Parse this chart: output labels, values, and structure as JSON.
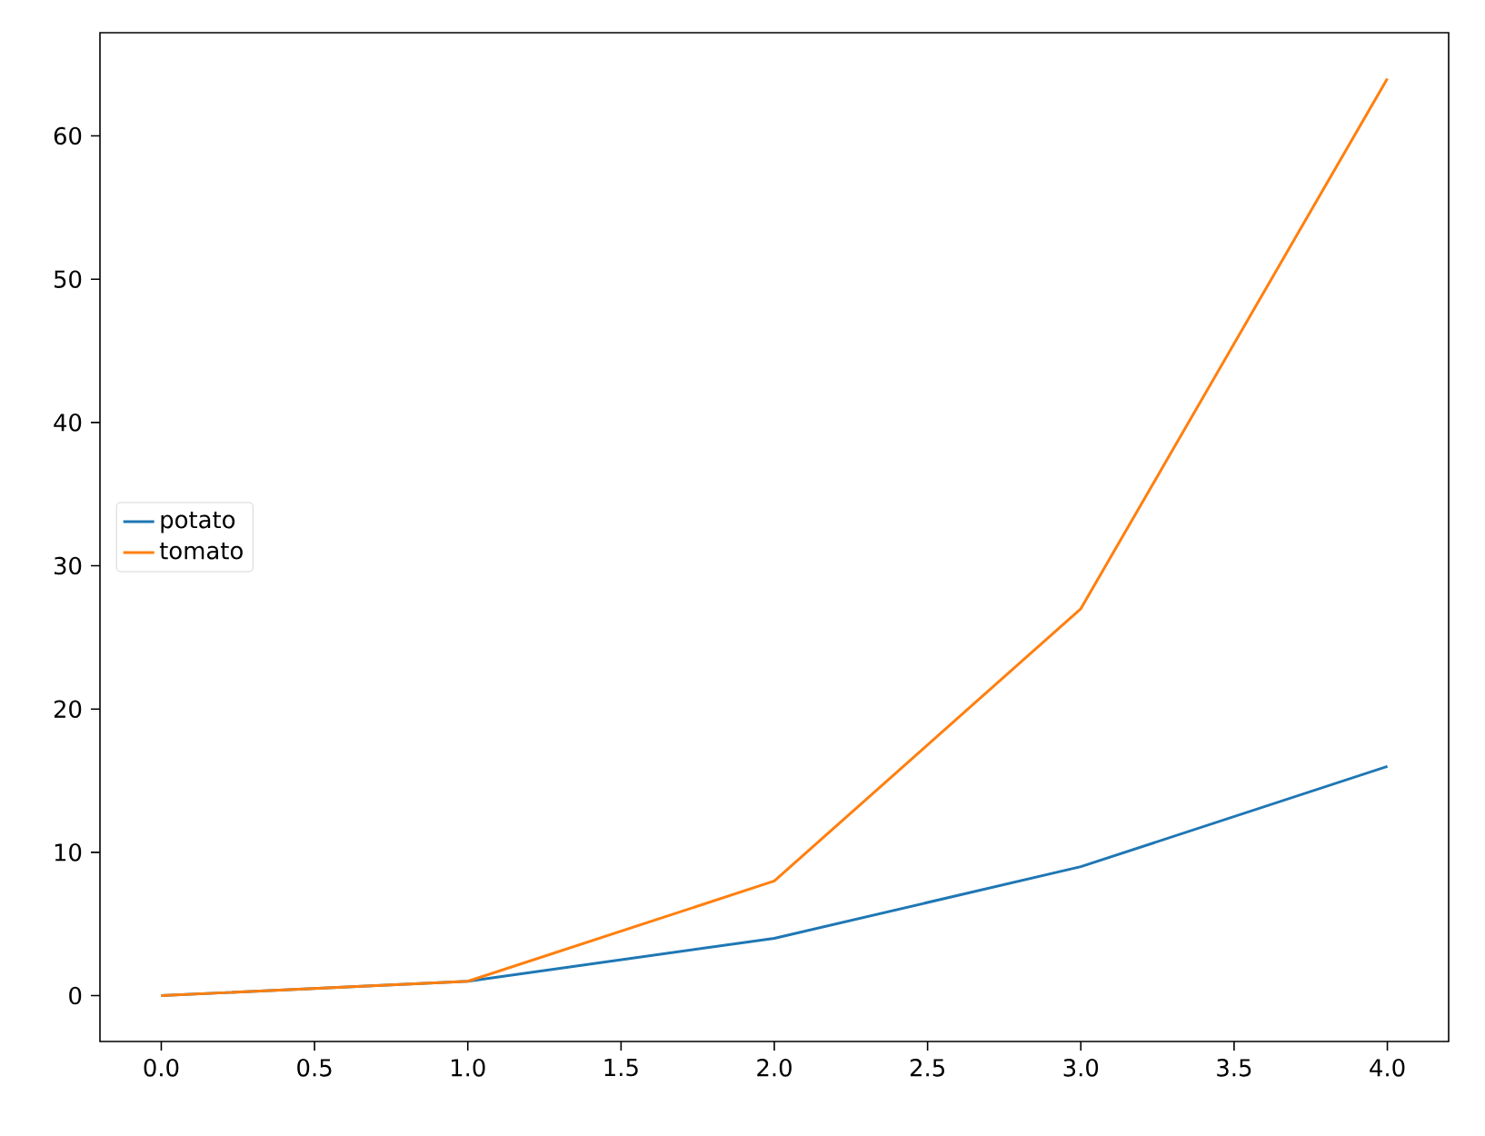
{
  "chart_data": {
    "type": "line",
    "x": [
      0,
      1,
      2,
      3,
      4
    ],
    "series": [
      {
        "name": "potato",
        "color": "#1f77b4",
        "values": [
          0,
          1,
          4,
          9,
          16
        ]
      },
      {
        "name": "tomato",
        "color": "#ff7f0e",
        "values": [
          0,
          1,
          8,
          27,
          64
        ]
      }
    ],
    "xlim": [
      -0.2,
      4.2
    ],
    "ylim": [
      -3.2,
      67.2
    ],
    "xticks": [
      {
        "value": 0,
        "label": "0.0"
      },
      {
        "value": 0.5,
        "label": "0.5"
      },
      {
        "value": 1,
        "label": "1.0"
      },
      {
        "value": 1.5,
        "label": "1.5"
      },
      {
        "value": 2,
        "label": "2.0"
      },
      {
        "value": 2.5,
        "label": "2.5"
      },
      {
        "value": 3,
        "label": "3.0"
      },
      {
        "value": 3.5,
        "label": "3.5"
      },
      {
        "value": 4,
        "label": "4.0"
      }
    ],
    "yticks": [
      0,
      10,
      20,
      30,
      40,
      50,
      60
    ],
    "grid": false,
    "legend": "left"
  }
}
